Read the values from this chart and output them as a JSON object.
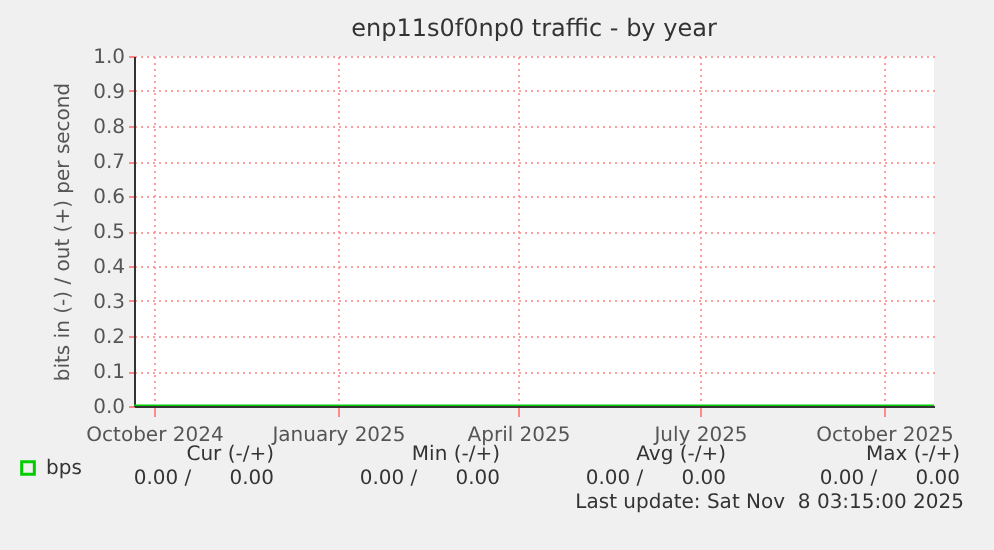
{
  "chart_data": {
    "type": "line",
    "title": "enp11s0f0np0 traffic - by year",
    "ylabel": "bits in (-) / out (+) per second",
    "x": [
      "2024-09-21",
      "2025-10-26"
    ],
    "series": [
      {
        "name": "bps",
        "color": "#00cc00",
        "values": [
          0,
          0
        ]
      }
    ],
    "xlim": [
      "2024-09-21",
      "2025-10-26"
    ],
    "xticks": [
      {
        "value": "2024-10-01",
        "label": "October 2024"
      },
      {
        "value": "2025-01-01",
        "label": "January 2025"
      },
      {
        "value": "2025-04-01",
        "label": "April 2025"
      },
      {
        "value": "2025-07-01",
        "label": "July 2025"
      },
      {
        "value": "2025-10-01",
        "label": "October 2025"
      }
    ],
    "ylim": [
      0,
      1
    ],
    "yticks": [
      {
        "value": 0,
        "label": "0.0"
      },
      0.1,
      0.2,
      0.3,
      0.4,
      0.5,
      0.6,
      0.7,
      0.8,
      0.9,
      {
        "value": 1,
        "label": "1.0"
      }
    ],
    "grid": true,
    "legend": "bottom left",
    "marker": "none",
    "line_style": "solid",
    "annotations": [
      "Cur (-/+)",
      "Min (-/+)",
      "Avg (-/+)",
      "Max (-/+)",
      "0.00 /      0.00",
      "0.00 /      0.00",
      "0.00 /      0.00",
      "0.00 /      0.00",
      "Last update: Sat Nov  8 03:15:00 2025"
    ]
  }
}
